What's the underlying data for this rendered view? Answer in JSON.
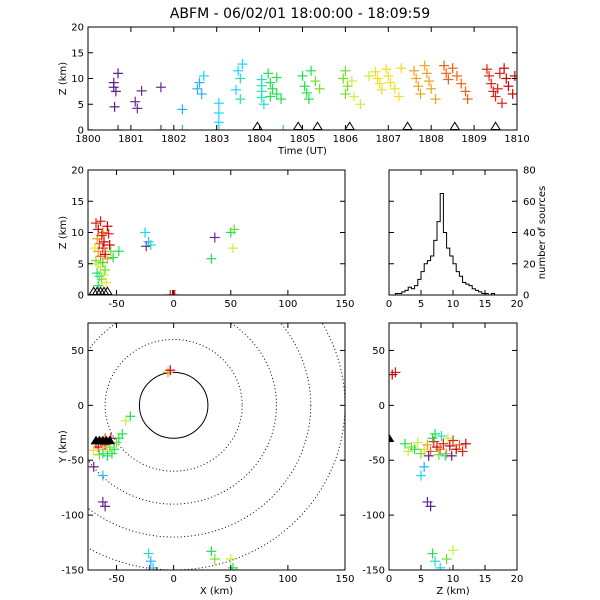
{
  "title": "ABFM - 06/02/01 18:00:00 - 18:09:59",
  "colors": {
    "palette": [
      "#5a1e8c",
      "#6a2a9a",
      "#2bb0ff",
      "#1ad6ff",
      "#22e0c0",
      "#21e04a",
      "#6fe02a",
      "#c8f03a",
      "#f0e020",
      "#f0a020",
      "#f06010",
      "#e02010",
      "#c80000"
    ]
  },
  "chart_data": [
    {
      "id": "time-height",
      "type": "scatter",
      "xlabel": "Time (UT)",
      "ylabel": "Z (km)",
      "xlim": [
        0,
        10
      ],
      "ylim": [
        0,
        20
      ],
      "xticks": [
        0,
        1,
        2,
        3,
        4,
        5,
        6,
        7,
        8,
        9,
        10
      ],
      "xticklabels": [
        "1800",
        "1801",
        "1802",
        "1803",
        "1804",
        "1805",
        "1806",
        "1807",
        "1808",
        "1809",
        "1810"
      ],
      "yticks": [
        0,
        5,
        10,
        15,
        20
      ],
      "points": [
        [
          0.0,
          0.0,
          0
        ],
        [
          0.6,
          9.2,
          0
        ],
        [
          0.6,
          8.3,
          0
        ],
        [
          0.65,
          7.5,
          0
        ],
        [
          0.7,
          11.0,
          0
        ],
        [
          0.62,
          4.5,
          0
        ],
        [
          0.7,
          0.0,
          0
        ],
        [
          1.1,
          5.5,
          1
        ],
        [
          1.15,
          4.2,
          1
        ],
        [
          1.25,
          7.6,
          1
        ],
        [
          1.7,
          8.3,
          1
        ],
        [
          1.7,
          0.0,
          1
        ],
        [
          2.2,
          4.0,
          2
        ],
        [
          2.2,
          0.0,
          2
        ],
        [
          2.55,
          8.0,
          2
        ],
        [
          2.6,
          9.2,
          2
        ],
        [
          2.7,
          10.5,
          3
        ],
        [
          2.65,
          7.0,
          2
        ],
        [
          3.05,
          5.2,
          3
        ],
        [
          3.05,
          3.3,
          3
        ],
        [
          3.05,
          1.5,
          3
        ],
        [
          3.05,
          0.0,
          3
        ],
        [
          3.5,
          11.5,
          3
        ],
        [
          3.6,
          12.8,
          3
        ],
        [
          3.55,
          10.0,
          4
        ],
        [
          3.45,
          7.8,
          3
        ],
        [
          3.55,
          6.0,
          4
        ],
        [
          4.05,
          9.8,
          4
        ],
        [
          4.05,
          8.6,
          4
        ],
        [
          4.05,
          7.5,
          4
        ],
        [
          4.05,
          6.3,
          4
        ],
        [
          4.1,
          5.0,
          4
        ],
        [
          4.2,
          11.0,
          5
        ],
        [
          4.25,
          9.2,
          5
        ],
        [
          4.3,
          8.0,
          5
        ],
        [
          4.25,
          6.5,
          5
        ],
        [
          4.4,
          10.2,
          5
        ],
        [
          4.4,
          7.0,
          5
        ],
        [
          4.5,
          6.0,
          5
        ],
        [
          4.55,
          0.0,
          5
        ],
        [
          5.0,
          10.5,
          5
        ],
        [
          5.05,
          8.5,
          5
        ],
        [
          5.1,
          7.2,
          5
        ],
        [
          5.15,
          6.0,
          5
        ],
        [
          5.2,
          11.5,
          5
        ],
        [
          5.3,
          9.5,
          6
        ],
        [
          5.4,
          8.0,
          6
        ],
        [
          5.95,
          10.0,
          6
        ],
        [
          6.0,
          11.5,
          6
        ],
        [
          6.05,
          8.5,
          6
        ],
        [
          6.0,
          7.0,
          6
        ],
        [
          6.15,
          9.5,
          7
        ],
        [
          6.2,
          6.5,
          7
        ],
        [
          6.35,
          5.0,
          7
        ],
        [
          6.55,
          10.5,
          7
        ],
        [
          6.7,
          11.3,
          8
        ],
        [
          6.75,
          10.0,
          8
        ],
        [
          6.8,
          9.0,
          8
        ],
        [
          6.85,
          7.8,
          8
        ],
        [
          6.95,
          11.8,
          8
        ],
        [
          7.0,
          10.5,
          8
        ],
        [
          7.05,
          9.2,
          8
        ],
        [
          7.15,
          8.0,
          8
        ],
        [
          7.25,
          6.5,
          8
        ],
        [
          7.3,
          12.0,
          8
        ],
        [
          7.6,
          11.5,
          9
        ],
        [
          7.65,
          10.0,
          9
        ],
        [
          7.7,
          8.5,
          9
        ],
        [
          7.75,
          7.0,
          9
        ],
        [
          7.85,
          12.5,
          9
        ],
        [
          7.9,
          11.0,
          9
        ],
        [
          7.95,
          9.5,
          9
        ],
        [
          8.0,
          8.0,
          9
        ],
        [
          8.1,
          6.0,
          9
        ],
        [
          8.3,
          12.5,
          10
        ],
        [
          8.35,
          11.0,
          10
        ],
        [
          8.4,
          9.8,
          10
        ],
        [
          8.5,
          12.0,
          10
        ],
        [
          8.6,
          10.5,
          10
        ],
        [
          8.7,
          9.0,
          10
        ],
        [
          8.8,
          7.5,
          10
        ],
        [
          8.85,
          6.0,
          10
        ],
        [
          9.3,
          11.8,
          11
        ],
        [
          9.35,
          10.5,
          11
        ],
        [
          9.4,
          9.0,
          11
        ],
        [
          9.45,
          7.5,
          11
        ],
        [
          9.5,
          6.5,
          11
        ],
        [
          9.55,
          8.0,
          11
        ],
        [
          9.6,
          11.0,
          11
        ],
        [
          9.65,
          5.2,
          11
        ],
        [
          9.7,
          12.0,
          12
        ],
        [
          9.75,
          10.0,
          12
        ],
        [
          9.8,
          8.5,
          12
        ],
        [
          9.9,
          7.0,
          12
        ],
        [
          9.95,
          10.5,
          12
        ]
      ],
      "stations": [
        3.95,
        4.9,
        5.35,
        6.1,
        7.45,
        8.55,
        9.5
      ]
    },
    {
      "id": "x-height",
      "type": "scatter",
      "xlabel": "",
      "ylabel": "Z (km)",
      "xlim": [
        -75,
        150
      ],
      "ylim": [
        0,
        20
      ],
      "xticks": [
        -50,
        0,
        50,
        100,
        150
      ],
      "yticks": [
        0,
        5,
        10,
        15,
        20
      ],
      "points": [
        [
          -68,
          11.5,
          11
        ],
        [
          -66,
          10.5,
          12
        ],
        [
          -64,
          11.8,
          11
        ],
        [
          -62,
          10.0,
          10
        ],
        [
          -67,
          9.0,
          9
        ],
        [
          -65,
          8.2,
          10
        ],
        [
          -63,
          9.5,
          11
        ],
        [
          -61,
          8.5,
          12
        ],
        [
          -69,
          7.5,
          8
        ],
        [
          -66,
          7.0,
          9
        ],
        [
          -64,
          6.2,
          10
        ],
        [
          -62,
          7.5,
          11
        ],
        [
          -60,
          6.5,
          12
        ],
        [
          -68,
          5.5,
          6
        ],
        [
          -66,
          5.0,
          7
        ],
        [
          -64,
          4.5,
          8
        ],
        [
          -62,
          5.2,
          5
        ],
        [
          -60,
          4.0,
          6
        ],
        [
          -67,
          3.5,
          5
        ],
        [
          -65,
          3.0,
          4
        ],
        [
          -63,
          2.5,
          6
        ],
        [
          -61,
          3.2,
          7
        ],
        [
          -59,
          2.0,
          8
        ],
        [
          -66,
          1.5,
          5
        ],
        [
          -58,
          5.8,
          9
        ],
        [
          -57,
          9.8,
          11
        ],
        [
          -55,
          7.0,
          6
        ],
        [
          -53,
          6.0,
          5
        ],
        [
          -56,
          8.0,
          12
        ],
        [
          -58,
          11.0,
          12
        ],
        [
          -48,
          7.0,
          5
        ],
        [
          -25,
          10.0,
          3
        ],
        [
          -22,
          8.5,
          2
        ],
        [
          -24,
          7.8,
          1
        ],
        [
          -20,
          8.0,
          4
        ],
        [
          -3,
          0.0,
          11
        ],
        [
          -1,
          0.0,
          12
        ],
        [
          1,
          0.0,
          11
        ],
        [
          33,
          5.8,
          5
        ],
        [
          36,
          9.2,
          1
        ],
        [
          50,
          10.0,
          5
        ],
        [
          53,
          10.5,
          6
        ],
        [
          52,
          7.5,
          7
        ]
      ],
      "stations": [
        -70,
        -67,
        -64,
        -61,
        -58
      ]
    },
    {
      "id": "z-histogram",
      "type": "histogram",
      "xlabel": "",
      "ylabel": "number of sources",
      "xlim": [
        0,
        20
      ],
      "ylim": [
        0,
        80
      ],
      "xticks": [
        0,
        5,
        10,
        15,
        20
      ],
      "yticks": [
        0,
        20,
        40,
        60,
        80
      ],
      "bin_width": 0.5,
      "bin_start": 0,
      "counts": [
        0,
        0,
        1,
        1,
        2,
        3,
        5,
        4,
        6,
        10,
        15,
        20,
        22,
        25,
        35,
        47,
        65,
        40,
        30,
        25,
        20,
        15,
        12,
        8,
        7,
        6,
        4,
        3,
        2,
        1,
        1,
        0,
        1,
        0,
        0,
        0,
        0,
        0,
        0,
        0
      ]
    },
    {
      "id": "plan-view",
      "type": "scatter",
      "xlabel": "X (km)",
      "ylabel": "Y (km)",
      "xlim": [
        -75,
        150
      ],
      "ylim": [
        -150,
        75
      ],
      "xticks": [
        -50,
        0,
        50,
        100,
        150
      ],
      "yticks": [
        -150,
        -100,
        -50,
        0,
        50
      ],
      "rings": [
        30,
        60,
        90,
        120,
        150
      ],
      "points": [
        [
          -68,
          -35,
          11
        ],
        [
          -66,
          -38,
          12
        ],
        [
          -64,
          -34,
          10
        ],
        [
          -62,
          -40,
          9
        ],
        [
          -70,
          -41,
          8
        ],
        [
          -60,
          -36,
          11
        ],
        [
          -58,
          -42,
          7
        ],
        [
          -56,
          -38,
          6
        ],
        [
          -54,
          -44,
          5
        ],
        [
          -52,
          -40,
          5
        ],
        [
          -50,
          -34,
          6
        ],
        [
          -48,
          -30,
          5
        ],
        [
          -45,
          -26,
          5
        ],
        [
          -62,
          -44,
          4
        ],
        [
          -65,
          -45,
          6
        ],
        [
          -58,
          -46,
          5
        ],
        [
          -55,
          -30,
          12
        ],
        [
          -60,
          -30,
          10
        ],
        [
          -38,
          -10,
          5
        ],
        [
          -42,
          -14,
          7
        ],
        [
          -70,
          -56,
          0
        ],
        [
          -62,
          -64,
          2
        ],
        [
          -60,
          -92,
          0
        ],
        [
          -62,
          -88,
          1
        ],
        [
          -5,
          30,
          9
        ],
        [
          -3,
          32,
          12
        ],
        [
          -22,
          -135,
          4
        ],
        [
          -20,
          -142,
          2
        ],
        [
          -18,
          -148,
          3
        ],
        [
          -15,
          -152,
          12
        ],
        [
          -21,
          -150,
          1
        ],
        [
          33,
          -133,
          5
        ],
        [
          36,
          -140,
          6
        ],
        [
          50,
          -140,
          7
        ],
        [
          52,
          -148,
          5
        ],
        [
          55,
          -152,
          6
        ]
      ],
      "stations": [
        -68,
        -65,
        -62,
        -59,
        -56
      ]
    },
    {
      "id": "z-y-view",
      "type": "scatter",
      "xlabel": "Z (km)",
      "ylabel": "",
      "xlim": [
        0,
        20
      ],
      "ylim": [
        -150,
        75
      ],
      "xticks": [
        0,
        5,
        10,
        15,
        20
      ],
      "yticks": [
        -150,
        -100,
        -50,
        0,
        50
      ],
      "points": [
        [
          1,
          30,
          11
        ],
        [
          0.5,
          28,
          12
        ],
        [
          2.5,
          -35,
          5
        ],
        [
          3.5,
          -38,
          6
        ],
        [
          4.5,
          -34,
          7
        ],
        [
          5.5,
          -40,
          8
        ],
        [
          6.0,
          -36,
          9
        ],
        [
          6.5,
          -42,
          10
        ],
        [
          7.0,
          -33,
          11
        ],
        [
          7.5,
          -38,
          12
        ],
        [
          8.0,
          -40,
          10
        ],
        [
          8.5,
          -35,
          11
        ],
        [
          9.0,
          -44,
          9
        ],
        [
          9.5,
          -37,
          12
        ],
        [
          10.0,
          -32,
          11
        ],
        [
          10.5,
          -40,
          12
        ],
        [
          11.0,
          -36,
          10
        ],
        [
          11.5,
          -42,
          11
        ],
        [
          12.0,
          -35,
          12
        ],
        [
          6.8,
          -30,
          5
        ],
        [
          7.2,
          -26,
          5
        ],
        [
          7.8,
          -45,
          6
        ],
        [
          8.8,
          -46,
          4
        ],
        [
          9.2,
          -30,
          7
        ],
        [
          5.0,
          -44,
          6
        ],
        [
          4.0,
          -40,
          5
        ],
        [
          3.0,
          -42,
          7
        ],
        [
          6.2,
          -46,
          0
        ],
        [
          9.8,
          -46,
          0
        ],
        [
          8.2,
          -28,
          4
        ],
        [
          5.5,
          -56,
          2
        ],
        [
          5.0,
          -64,
          3
        ],
        [
          6.0,
          -88,
          1
        ],
        [
          6.5,
          -92,
          0
        ],
        [
          6.8,
          -135,
          5
        ],
        [
          7.2,
          -142,
          4
        ],
        [
          8.0,
          -148,
          3
        ],
        [
          9.0,
          -140,
          6
        ],
        [
          10.0,
          -132,
          7
        ],
        [
          9.5,
          -152,
          5
        ]
      ],
      "stations": [
        0.0
      ]
    }
  ]
}
